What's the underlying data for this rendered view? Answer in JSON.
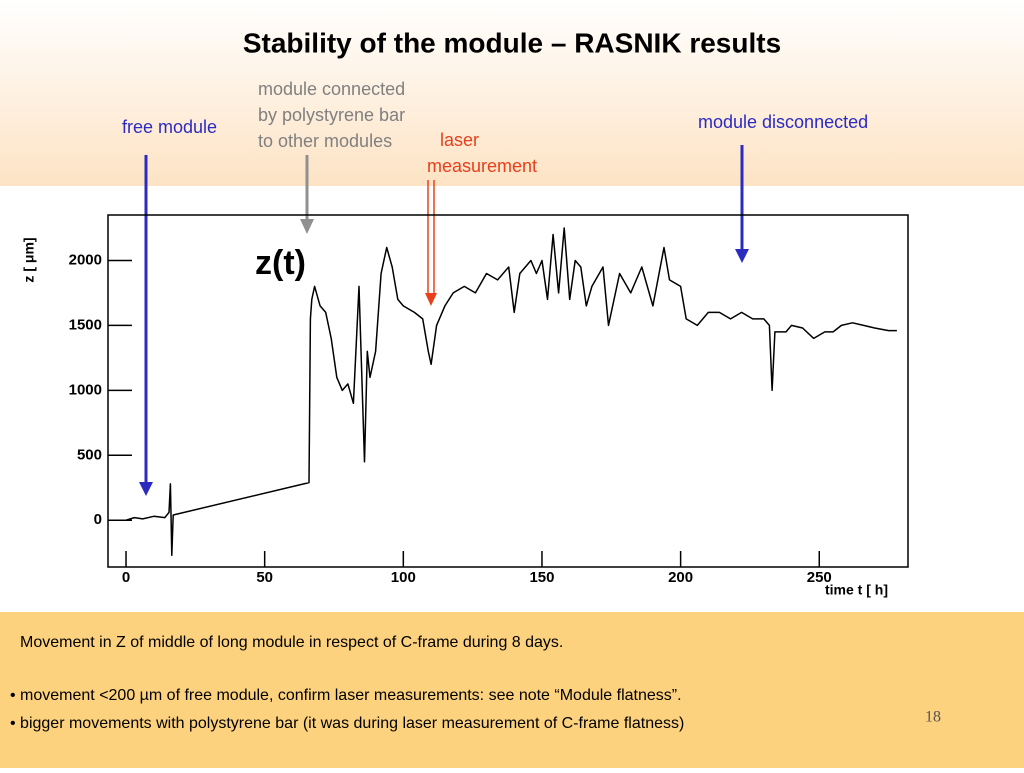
{
  "title": "Stability of the module – RASNIK results",
  "annotations": [
    {
      "lines": [
        "free module"
      ],
      "color": "#2b2bc0"
    },
    {
      "lines": [
        "module connected",
        "by polystyrene bar",
        "to other modules"
      ],
      "color": "#808080"
    },
    {
      "lines": [
        "laser",
        "measurement"
      ],
      "color": "#e8401c"
    },
    {
      "lines": [
        "module disconnected"
      ],
      "color": "#2b2bc0"
    }
  ],
  "notes": [
    "Movement in Z of middle of long module in respect of C-frame during 8 days.",
    "• movement <200 µm of free module, confirm laser measurements: see note “Module flatness”.",
    "• bigger movements with polystyrene bar  (it was during laser measurement of C-frame flatness)"
  ],
  "page_number": "18",
  "chart_data": {
    "type": "line",
    "title": "z(t)",
    "x_label": "time t [ h]",
    "y_label": "z [ μm]",
    "color": "#000000",
    "x": [
      0,
      3,
      6,
      10,
      14,
      15.5,
      16,
      16.5,
      17,
      66,
      66.5,
      67,
      68,
      70,
      72,
      74,
      76,
      78,
      80,
      82,
      84,
      86,
      87,
      88,
      90,
      92,
      94,
      96,
      98,
      100,
      104,
      107,
      109,
      110,
      112,
      115,
      118,
      122,
      126,
      130,
      134,
      138,
      140,
      142,
      146,
      148,
      150,
      152,
      154,
      156,
      158,
      160,
      162,
      164,
      166,
      168,
      172,
      174,
      178,
      182,
      186,
      190,
      194,
      196,
      200,
      202,
      206,
      210,
      214,
      218,
      222,
      226,
      230,
      232,
      233,
      234,
      238,
      240,
      244,
      248,
      252,
      255,
      258,
      262,
      266,
      270,
      275,
      278
    ],
    "values": [
      0,
      20,
      10,
      30,
      20,
      60,
      280,
      -270,
      40,
      290,
      1550,
      1700,
      1800,
      1650,
      1600,
      1400,
      1100,
      1000,
      1050,
      900,
      1800,
      450,
      1300,
      1100,
      1300,
      1900,
      2100,
      1950,
      1700,
      1650,
      1600,
      1550,
      1300,
      1200,
      1500,
      1650,
      1750,
      1800,
      1750,
      1900,
      1850,
      1950,
      1600,
      1900,
      2000,
      1900,
      2000,
      1700,
      2200,
      1750,
      2250,
      1700,
      2000,
      1950,
      1650,
      1800,
      1950,
      1500,
      1900,
      1750,
      1950,
      1650,
      2100,
      1850,
      1800,
      1550,
      1500,
      1600,
      1600,
      1550,
      1600,
      1550,
      1550,
      1500,
      1000,
      1450,
      1450,
      1500,
      1480,
      1400,
      1450,
      1450,
      1500,
      1520,
      1500,
      1480,
      1460,
      1460
    ],
    "xlim": [
      -6.5,
      282
    ],
    "ylim": [
      -360,
      2350
    ],
    "xticks": [
      0,
      50,
      100,
      150,
      200,
      250
    ],
    "yticks": [
      0,
      500,
      1000,
      1500,
      2000
    ]
  }
}
